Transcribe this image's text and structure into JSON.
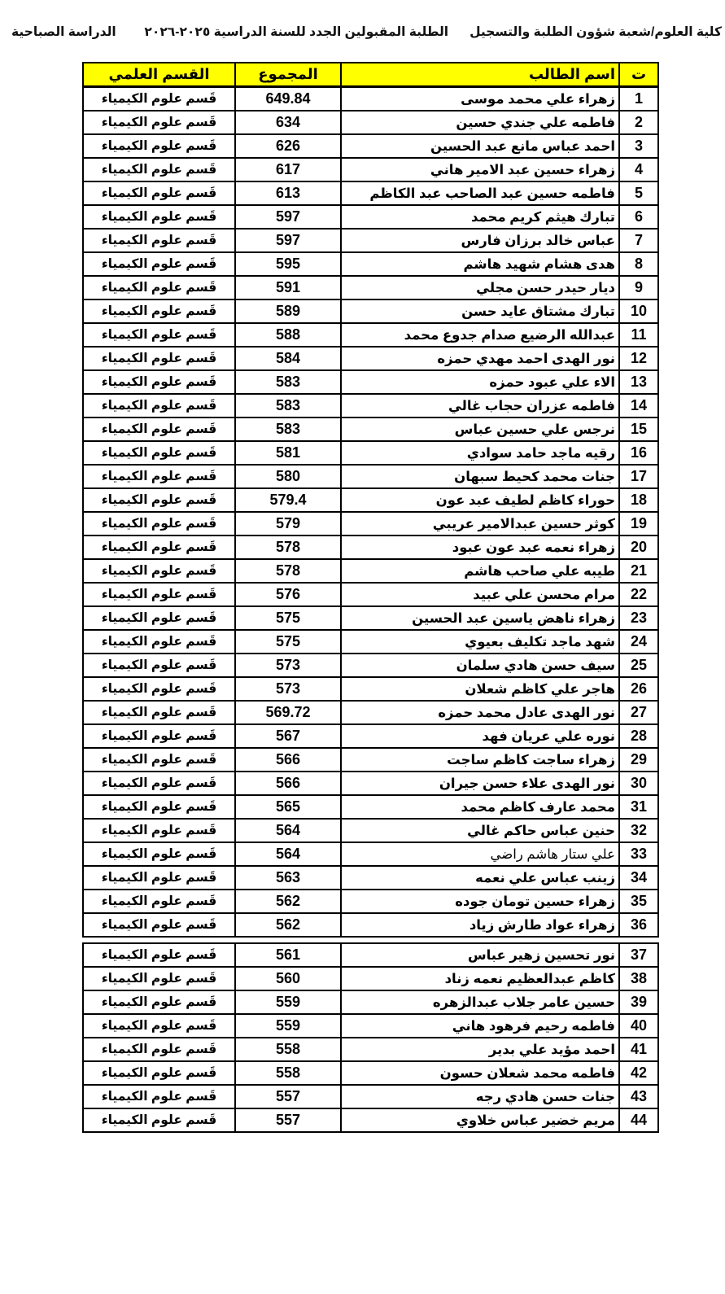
{
  "page_header": {
    "college_line": "كلية العلوم/شعبة شؤون الطلبة والتسجيل",
    "list_title": "الطلبة المقبولين الجدد للسنة الدراسية ٢٠٢٥-٢٠٢٦",
    "study_type": "الدراسة الصباحية"
  },
  "colors": {
    "header_bg": "#ffff00",
    "border": "#000000",
    "text": "#000000"
  },
  "table": {
    "columns": [
      {
        "key": "index",
        "label": "ت"
      },
      {
        "key": "name",
        "label": "اسم الطالب"
      },
      {
        "key": "total",
        "label": "المجموع"
      },
      {
        "key": "dept",
        "label": "القسم العلمي"
      }
    ],
    "department_repeated": "قَسم علوم الكيمياء",
    "split_after_row": 36,
    "rows": [
      {
        "index": "1",
        "name": "زهراء علي محمد موسى",
        "total": "649.84",
        "dept": "قَسم علوم الكيمياء"
      },
      {
        "index": "2",
        "name": "فاطمه علي جندي حسين",
        "total": "634",
        "dept": "قَسم علوم الكيمياء"
      },
      {
        "index": "3",
        "name": "احمد عباس مانع عبد الحسين",
        "total": "626",
        "dept": "قَسم علوم الكيمياء"
      },
      {
        "index": "4",
        "name": "زهراء حسين عبد الامير هاني",
        "total": "617",
        "dept": "قَسم علوم الكيمياء"
      },
      {
        "index": "5",
        "name": "فاطمه حسين عبد الصاحب عبد الكاظم",
        "total": "613",
        "dept": "قَسم علوم الكيمياء"
      },
      {
        "index": "6",
        "name": "تبارك هيثم كريم محمد",
        "total": "597",
        "dept": "قَسم علوم الكيمياء"
      },
      {
        "index": "7",
        "name": "عباس خالد برزان فارس",
        "total": "597",
        "dept": "قَسم علوم الكيمياء"
      },
      {
        "index": "8",
        "name": "هدى هشام شهيد هاشم",
        "total": "595",
        "dept": "قَسم علوم الكيمياء"
      },
      {
        "index": "9",
        "name": "ديار حيدر حسن مجلي",
        "total": "591",
        "dept": "قَسم علوم الكيمياء"
      },
      {
        "index": "10",
        "name": "تبارك مشتاق عايد حسن",
        "total": "589",
        "dept": "قَسم علوم الكيمياء"
      },
      {
        "index": "11",
        "name": "عبدالله الرضيع صدام جدوع محمد",
        "total": "588",
        "dept": "قَسم علوم الكيمياء"
      },
      {
        "index": "12",
        "name": "نور الهدى احمد مهدي حمزه",
        "total": "584",
        "dept": "قَسم علوم الكيمياء"
      },
      {
        "index": "13",
        "name": "الاء علي عبود حمزه",
        "total": "583",
        "dept": "قَسم علوم الكيمياء"
      },
      {
        "index": "14",
        "name": "فاطمه عزران حجاب غالي",
        "total": "583",
        "dept": "قَسم علوم الكيمياء"
      },
      {
        "index": "15",
        "name": "نرجس علي حسين عباس",
        "total": "583",
        "dept": "قَسم علوم الكيمياء"
      },
      {
        "index": "16",
        "name": "رقيه ماجد حامد سوادي",
        "total": "581",
        "dept": "قَسم علوم الكيمياء"
      },
      {
        "index": "17",
        "name": "جنات محمد كحيط سبهان",
        "total": "580",
        "dept": "قَسم علوم الكيمياء"
      },
      {
        "index": "18",
        "name": "حوراء كاظم لطيف عبد عون",
        "total": "579.4",
        "dept": "قَسم علوم الكيمياء"
      },
      {
        "index": "19",
        "name": "كوثر حسين عبدالامير عريبي",
        "total": "579",
        "dept": "قَسم علوم الكيمياء"
      },
      {
        "index": "20",
        "name": "زهراء نعمه عبد عون عبود",
        "total": "578",
        "dept": "قَسم علوم الكيمياء"
      },
      {
        "index": "21",
        "name": "طيبه علي صاحب هاشم",
        "total": "578",
        "dept": "قَسم علوم الكيمياء"
      },
      {
        "index": "22",
        "name": "مرام محسن علي عبيد",
        "total": "576",
        "dept": "قَسم علوم الكيمياء"
      },
      {
        "index": "23",
        "name": "زهراء ناهض ياسين عبد الحسين",
        "total": "575",
        "dept": "قَسم علوم الكيمياء"
      },
      {
        "index": "24",
        "name": "شهد ماجد تكليف بعيوي",
        "total": "575",
        "dept": "قَسم علوم الكيمياء"
      },
      {
        "index": "25",
        "name": "سيف حسن هادي سلمان",
        "total": "573",
        "dept": "قَسم علوم الكيمياء"
      },
      {
        "index": "26",
        "name": "هاجر علي كاظم شعلان",
        "total": "573",
        "dept": "قَسم علوم الكيمياء"
      },
      {
        "index": "27",
        "name": "نور الهدى عادل محمد حمزه",
        "total": "569.72",
        "dept": "قَسم علوم الكيمياء"
      },
      {
        "index": "28",
        "name": "نوره علي عريان فهد",
        "total": "567",
        "dept": "قَسم علوم الكيمياء"
      },
      {
        "index": "29",
        "name": "زهراء ساجت كاظم ساجت",
        "total": "566",
        "dept": "قَسم علوم الكيمياء"
      },
      {
        "index": "30",
        "name": "نور الهدى علاء حسن جيران",
        "total": "566",
        "dept": "قَسم علوم الكيمياء"
      },
      {
        "index": "31",
        "name": "محمد عارف كاظم محمد",
        "total": "565",
        "dept": "قَسم علوم الكيمياء"
      },
      {
        "index": "32",
        "name": "حنين عباس حاكم غالي",
        "total": "564",
        "dept": "قَسم علوم الكيمياء"
      },
      {
        "index": "33",
        "name": "علي ستار هاشم راضي",
        "total": "564",
        "dept": "قَسم علوم الكيمياء",
        "light": true
      },
      {
        "index": "34",
        "name": "زينب عباس علي نعمه",
        "total": "563",
        "dept": "قَسم علوم الكيمياء"
      },
      {
        "index": "35",
        "name": "زهراء حسين تومان جوده",
        "total": "562",
        "dept": "قَسم علوم الكيمياء"
      },
      {
        "index": "36",
        "name": "زهراء عواد طارش زياد",
        "total": "562",
        "dept": "قَسم علوم الكيمياء"
      },
      {
        "index": "37",
        "name": "نور تحسين زهير عباس",
        "total": "561",
        "dept": "قَسم علوم الكيمياء"
      },
      {
        "index": "38",
        "name": "كاظم عبدالعظيم نعمه زناد",
        "total": "560",
        "dept": "قَسم علوم الكيمياء"
      },
      {
        "index": "39",
        "name": "حسين عامر جلاب عبدالزهره",
        "total": "559",
        "dept": "قَسم علوم الكيمياء"
      },
      {
        "index": "40",
        "name": "فاطمه رحيم فرهود هاني",
        "total": "559",
        "dept": "قَسم علوم الكيمياء"
      },
      {
        "index": "41",
        "name": "احمد مؤيد علي بدير",
        "total": "558",
        "dept": "قَسم علوم الكيمياء"
      },
      {
        "index": "42",
        "name": "فاطمه محمد شعلان حسون",
        "total": "558",
        "dept": "قَسم علوم الكيمياء"
      },
      {
        "index": "43",
        "name": "جنات حسن هادي رجه",
        "total": "557",
        "dept": "قَسم علوم الكيمياء"
      },
      {
        "index": "44",
        "name": "مريم خضير عباس خلاوي",
        "total": "557",
        "dept": "قَسم علوم الكيمياء"
      }
    ]
  }
}
